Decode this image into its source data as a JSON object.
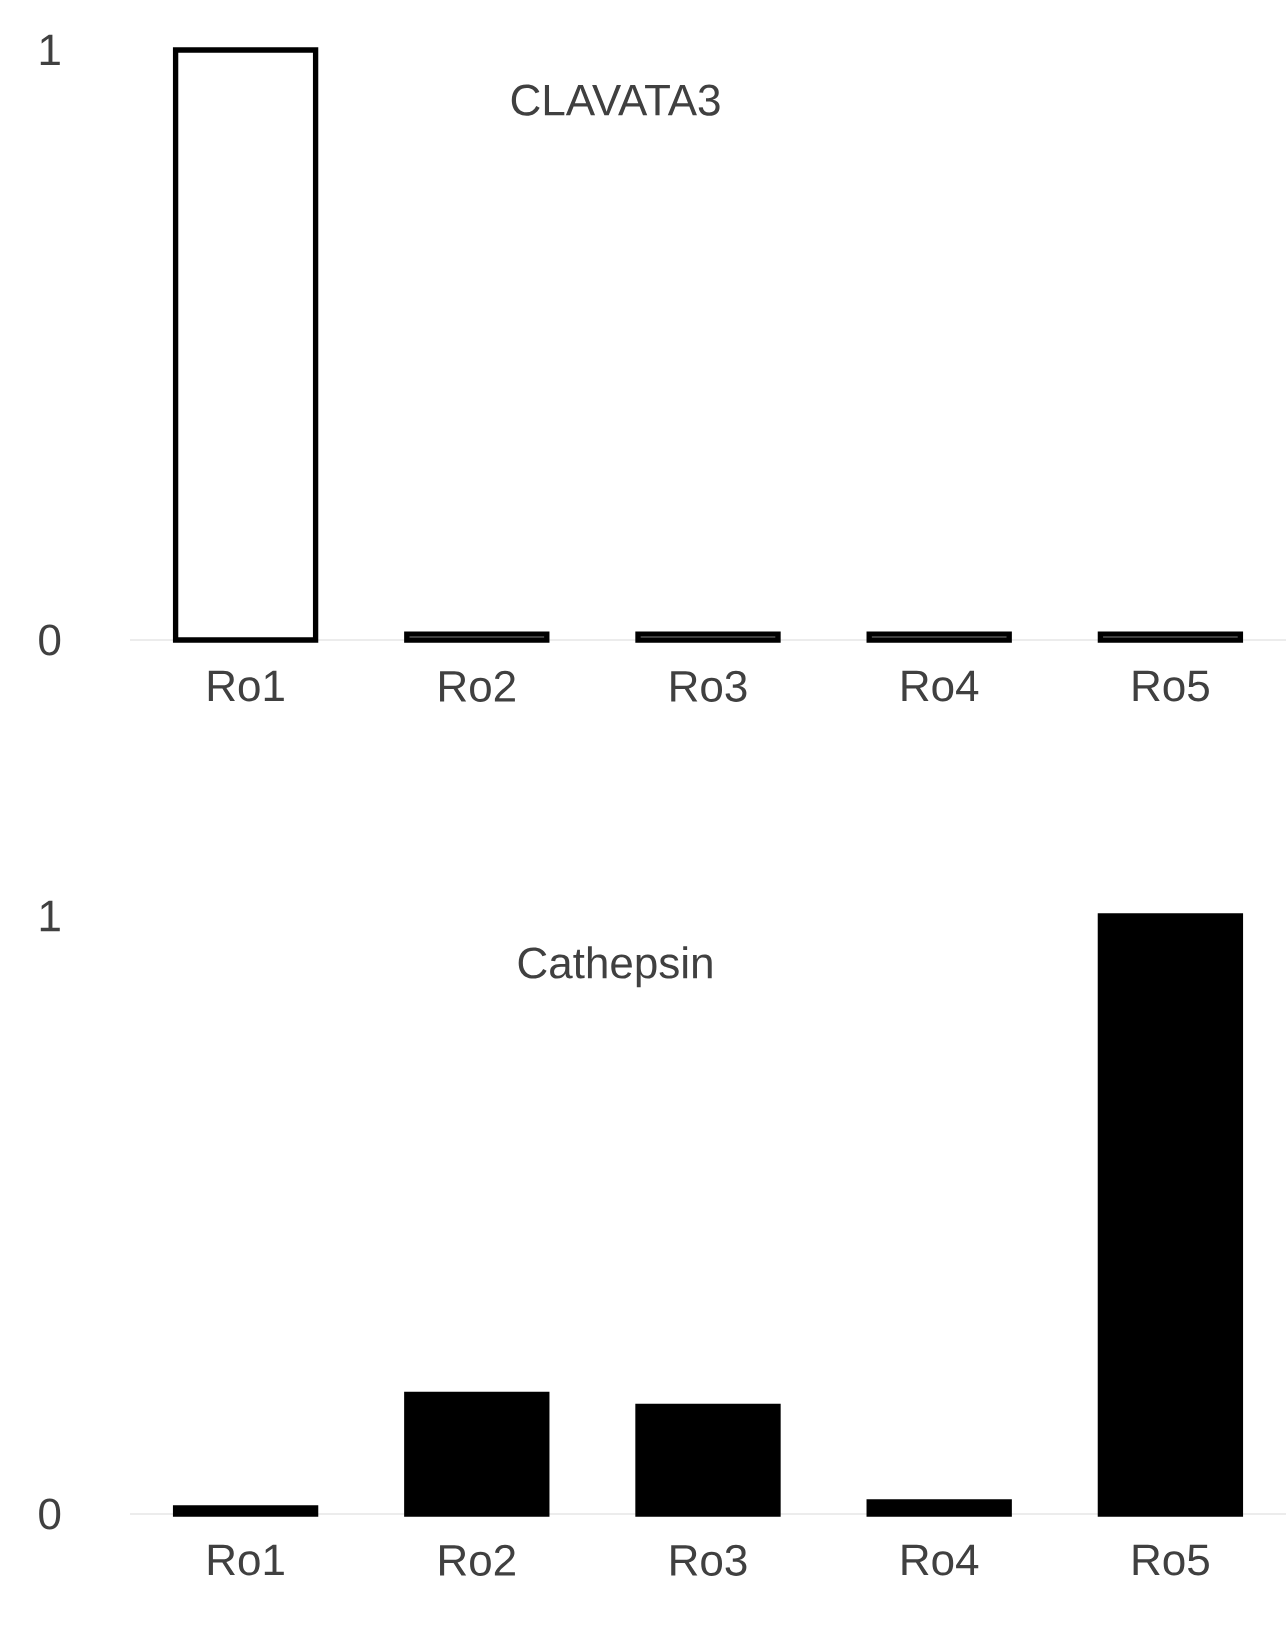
{
  "chart_data": [
    {
      "type": "bar",
      "title": "CLAVATA3",
      "categories": [
        "Ro1",
        "Ro2",
        "Ro3",
        "Ro4",
        "Ro5"
      ],
      "values": [
        1,
        0.01,
        0.01,
        0.01,
        0.01
      ],
      "color": "#ffffff",
      "ylim": [
        0,
        1
      ],
      "yticks": [
        0,
        1
      ]
    },
    {
      "type": "bar",
      "title": "Cathepsin",
      "categories": [
        "Ro1",
        "Ro2",
        "Ro3",
        "Ro4",
        "Ro5"
      ],
      "values": [
        0.01,
        0.2,
        0.18,
        0.02,
        1
      ],
      "color": "#000000",
      "ylim": [
        0,
        1
      ],
      "yticks": [
        0,
        1
      ]
    }
  ]
}
